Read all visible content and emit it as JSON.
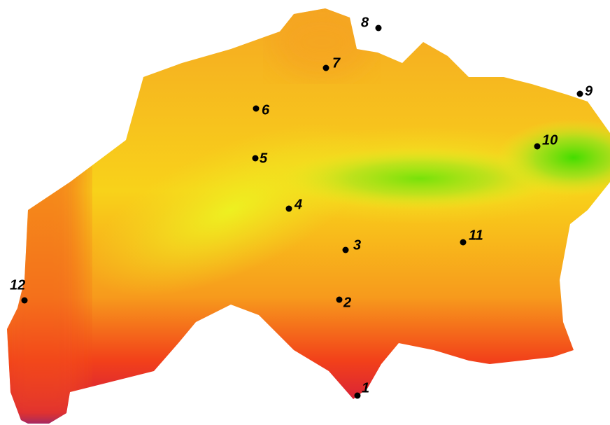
{
  "points": [
    {
      "label": "1"
    },
    {
      "label": "2"
    },
    {
      "label": "3"
    },
    {
      "label": "4"
    },
    {
      "label": "5"
    },
    {
      "label": "6"
    },
    {
      "label": "7"
    },
    {
      "label": "8"
    },
    {
      "label": "9"
    },
    {
      "label": "10"
    },
    {
      "label": "11"
    },
    {
      "label": "12"
    }
  ]
}
